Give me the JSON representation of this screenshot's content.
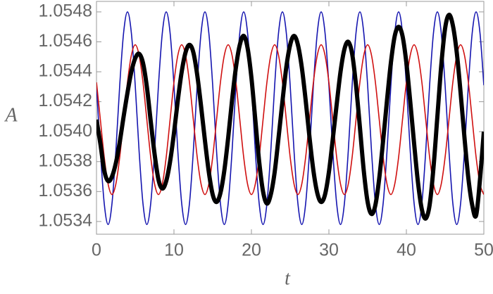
{
  "chart_data": {
    "type": "line",
    "x_label": "t",
    "y_label": "A",
    "x": [
      0,
      0.5,
      1,
      1.5,
      2,
      2.5,
      3,
      3.5,
      4,
      4.5,
      5,
      5.5,
      6,
      6.5,
      7,
      7.5,
      8,
      8.5,
      9,
      9.5,
      10,
      10.5,
      11,
      11.5,
      12,
      12.5,
      13,
      13.5,
      14,
      14.5,
      15,
      15.5,
      16,
      16.5,
      17,
      17.5,
      18,
      18.5,
      19,
      19.5,
      20,
      20.5,
      21,
      21.5,
      22,
      22.5,
      23,
      23.5,
      24,
      24.5,
      25,
      25.5,
      26,
      26.5,
      27,
      27.5,
      28,
      28.5,
      29,
      29.5,
      30,
      30.5,
      31,
      31.5,
      32,
      32.5,
      33,
      33.5,
      34,
      34.5,
      35,
      35.5,
      36,
      36.5,
      37,
      37.5,
      38,
      38.5,
      39,
      39.5,
      40,
      40.5,
      41,
      41.5,
      42,
      42.5,
      43,
      43.5,
      44,
      44.5,
      45,
      45.5,
      46,
      46.5,
      47,
      47.5,
      48,
      48.5,
      49,
      49.5,
      50
    ],
    "series": [
      {
        "color": "#1515b0",
        "width": 1.6,
        "values": [
          1.05431,
          1.05387,
          1.05352,
          1.05338,
          1.05352,
          1.05387,
          1.05431,
          1.05466,
          1.0548,
          1.05466,
          1.05431,
          1.05387,
          1.05352,
          1.05338,
          1.05352,
          1.05387,
          1.05431,
          1.05466,
          1.0548,
          1.05466,
          1.05431,
          1.05387,
          1.05352,
          1.05338,
          1.05352,
          1.05387,
          1.05431,
          1.05466,
          1.0548,
          1.05466,
          1.05431,
          1.05387,
          1.05352,
          1.05338,
          1.05352,
          1.05387,
          1.05431,
          1.05466,
          1.0548,
          1.05466,
          1.05431,
          1.05387,
          1.05352,
          1.05338,
          1.05352,
          1.05387,
          1.05431,
          1.05466,
          1.0548,
          1.05466,
          1.05431,
          1.05387,
          1.05352,
          1.05338,
          1.05352,
          1.05387,
          1.05431,
          1.05466,
          1.0548,
          1.05466,
          1.05431,
          1.05387,
          1.05352,
          1.05338,
          1.05352,
          1.05387,
          1.05431,
          1.05466,
          1.0548,
          1.05466,
          1.05431,
          1.05387,
          1.05352,
          1.05338,
          1.05352,
          1.05387,
          1.05431,
          1.05466,
          1.0548,
          1.05466,
          1.05431,
          1.05387,
          1.05352,
          1.05338,
          1.05352,
          1.05387,
          1.05431,
          1.05466,
          1.0548,
          1.05466,
          1.05431,
          1.05387,
          1.05352,
          1.05338,
          1.05352,
          1.05387,
          1.05431,
          1.05466,
          1.0548,
          1.05466,
          1.05431
        ]
      },
      {
        "color": "#d01010",
        "width": 1.6,
        "values": [
          1.05433,
          1.05408,
          1.05383,
          1.05365,
          1.05358,
          1.05365,
          1.05383,
          1.05408,
          1.05433,
          1.05451,
          1.05458,
          1.05451,
          1.05433,
          1.05408,
          1.05383,
          1.05365,
          1.05358,
          1.05365,
          1.05383,
          1.05408,
          1.05433,
          1.05451,
          1.05458,
          1.05451,
          1.05433,
          1.05408,
          1.05383,
          1.05365,
          1.05358,
          1.05365,
          1.05383,
          1.05408,
          1.05433,
          1.05451,
          1.05458,
          1.05451,
          1.05433,
          1.05408,
          1.05383,
          1.05365,
          1.05358,
          1.05365,
          1.05383,
          1.05408,
          1.05433,
          1.05451,
          1.05458,
          1.05451,
          1.05433,
          1.05408,
          1.05383,
          1.05365,
          1.05358,
          1.05365,
          1.05383,
          1.05408,
          1.05433,
          1.05451,
          1.05458,
          1.05451,
          1.05433,
          1.05408,
          1.05383,
          1.05365,
          1.05358,
          1.05365,
          1.05383,
          1.05408,
          1.05433,
          1.05451,
          1.05458,
          1.05451,
          1.05433,
          1.05408,
          1.05383,
          1.05365,
          1.05358,
          1.05365,
          1.05383,
          1.05408,
          1.05433,
          1.05451,
          1.05458,
          1.05451,
          1.05433,
          1.05408,
          1.05383,
          1.05365,
          1.05358,
          1.05365,
          1.05383,
          1.05408,
          1.05433,
          1.05451,
          1.05458,
          1.05451,
          1.05433,
          1.05408,
          1.05383,
          1.05365,
          1.05358
        ]
      },
      {
        "color": "#000000",
        "width": 6,
        "values": [
          1.05408,
          1.05392,
          1.05374,
          1.05367,
          1.0537,
          1.05379,
          1.05393,
          1.0541,
          1.05426,
          1.0544,
          1.05449,
          1.05452,
          1.05446,
          1.0543,
          1.05407,
          1.05385,
          1.05368,
          1.05362,
          1.05367,
          1.0538,
          1.05399,
          1.05421,
          1.0544,
          1.05453,
          1.05458,
          1.05453,
          1.05438,
          1.05417,
          1.05394,
          1.05373,
          1.05358,
          1.05353,
          1.05359,
          1.05374,
          1.05396,
          1.05421,
          1.05443,
          1.05458,
          1.05464,
          1.05456,
          1.05436,
          1.05408,
          1.0538,
          1.0536,
          1.05352,
          1.05358,
          1.05373,
          1.05396,
          1.0542,
          1.05443,
          1.05458,
          1.05464,
          1.05458,
          1.05443,
          1.05421,
          1.05396,
          1.05374,
          1.05359,
          1.05353,
          1.05358,
          1.05373,
          1.05395,
          1.05418,
          1.0544,
          1.05455,
          1.0546,
          1.05452,
          1.05431,
          1.05403,
          1.05374,
          1.05353,
          1.05345,
          1.05351,
          1.05369,
          1.05394,
          1.05421,
          1.05446,
          1.05464,
          1.0547,
          1.05464,
          1.05446,
          1.0542,
          1.05392,
          1.05366,
          1.05348,
          1.05342,
          1.05351,
          1.05376,
          1.0541,
          1.05444,
          1.05469,
          1.05478,
          1.05471,
          1.05453,
          1.05426,
          1.05396,
          1.05369,
          1.05351,
          1.05344,
          1.05368,
          1.054
        ]
      }
    ],
    "xlim": [
      0,
      50
    ],
    "xticks": [
      0,
      10,
      20,
      30,
      40,
      50
    ],
    "ylim": [
      1.053315,
      1.05487
    ],
    "yticks": [
      1.0534,
      1.0536,
      1.0538,
      {
        "value": 1.054,
        "label": "1.0540"
      },
      1.0542,
      1.0544,
      1.0546,
      1.0548
    ]
  }
}
